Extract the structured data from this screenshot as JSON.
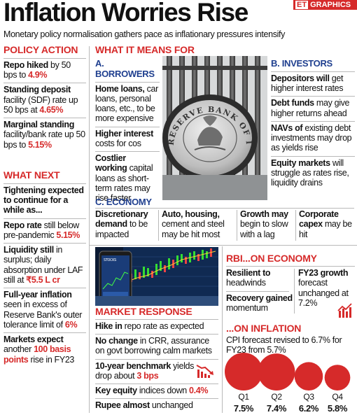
{
  "header": {
    "title": "Inflation Worries Rise",
    "badge_et": "ET",
    "badge_text": "GRAPHICS",
    "subtitle": "Monetary policy normalisation gathers pace as inflationary pressures intensify"
  },
  "policy_action": {
    "heading": "POLICY ACTION",
    "items": [
      {
        "lead": "Repo hiked",
        "text": " by 50 bps to ",
        "value": "4.9%"
      },
      {
        "lead": "Standing deposit",
        "text": " facility (SDF) rate up 50 bps at ",
        "value": "4.65%"
      },
      {
        "lead": "Marginal standing",
        "text": " facility/bank rate up 50 bps to ",
        "value": "5.15%"
      }
    ]
  },
  "what_next": {
    "heading": "WHAT NEXT",
    "items": [
      {
        "lead": "Tightening expected to continue for a while as...",
        "text": "",
        "value": ""
      },
      {
        "lead": "Repo rate",
        "text": " still below pre-pandemic ",
        "value": "5.15%"
      },
      {
        "lead": "Liquidity still",
        "text": " in surplus; daily absorption under LAF still at ",
        "value": "₹5.5 L cr"
      },
      {
        "lead": "Full-year inflation",
        "text": " seen in excess of Reserve Bank's outer tolerance limit of ",
        "value": "6%"
      },
      {
        "lead": "Markets expect",
        "text": " another ",
        "value": "100 basis points",
        "tail": " rise in FY23"
      }
    ]
  },
  "what_it_means": {
    "heading": "WHAT IT MEANS FOR",
    "borrowers": {
      "heading": "A. BORROWERS",
      "items": [
        {
          "lead": "Home loans,",
          "text": " car loans, personal loans, etc., to be more expensive"
        },
        {
          "lead": "Higher interest",
          "text": " costs for cos"
        },
        {
          "lead": "Costlier working",
          "text": " capital loans as short-term rates may rise faster"
        }
      ]
    },
    "investors": {
      "heading": "B. INVESTORS",
      "items": [
        {
          "lead": "Depositors will",
          "text": " get higher interest rates"
        },
        {
          "lead": "Debt funds",
          "text": " may give higher returns ahead"
        },
        {
          "lead": "NAVs of",
          "text": " existing debt investments may drop as yields rise"
        },
        {
          "lead": "Equity markets",
          "text": " will struggle as rates rise, liquidity drains"
        }
      ]
    },
    "economy": {
      "heading": "C. ECONOMY",
      "items": [
        {
          "lead": "Discretionary demand",
          "text": " to be impacted"
        },
        {
          "lead": "Auto, housing,",
          "text": " cement and steel may be hit most"
        },
        {
          "lead": "Growth may",
          "text": " begin to slow with a lag"
        },
        {
          "lead": "Corporate capex",
          "text": " may be hit"
        }
      ]
    },
    "seal_text": "RESERVE BANK OF INDIA"
  },
  "market_response": {
    "heading": "MARKET RESPONSE",
    "screen_label": "STOCKS",
    "items": [
      {
        "lead": "Hike in",
        "text": " repo rate as expected",
        "value": ""
      },
      {
        "lead": "No change",
        "text": " in CRR, assurance on govt borrowing calm markets",
        "value": ""
      },
      {
        "lead": "10-year benchmark",
        "text": " yields drop about ",
        "value": "3 bps"
      },
      {
        "lead": "Key equity",
        "text": " indices down ",
        "value": "0.4%"
      },
      {
        "lead": "Rupee almost",
        "text": " unchanged",
        "value": ""
      }
    ]
  },
  "rbi_economy": {
    "heading": "RBI...ON ECONOMY",
    "left": [
      {
        "lead": "Resilient to",
        "text": " headwinds"
      },
      {
        "lead": "Recovery gained",
        "text": " momentum"
      }
    ],
    "right": {
      "lead": "FY23 growth",
      "text": " forecast unchanged at 7.2%"
    }
  },
  "on_inflation": {
    "heading": "...ON INFLATION",
    "text": "CPI forecast revised to 6.7% for FY23 from 5.7%"
  },
  "chart_data": {
    "type": "bubble",
    "categories": [
      "Q1",
      "Q2",
      "Q3",
      "Q4"
    ],
    "values": [
      7.5,
      7.4,
      6.2,
      5.8
    ],
    "value_labels": [
      "7.5%",
      "7.4%",
      "6.2%",
      "5.8%"
    ],
    "color": "#d62a2a"
  }
}
